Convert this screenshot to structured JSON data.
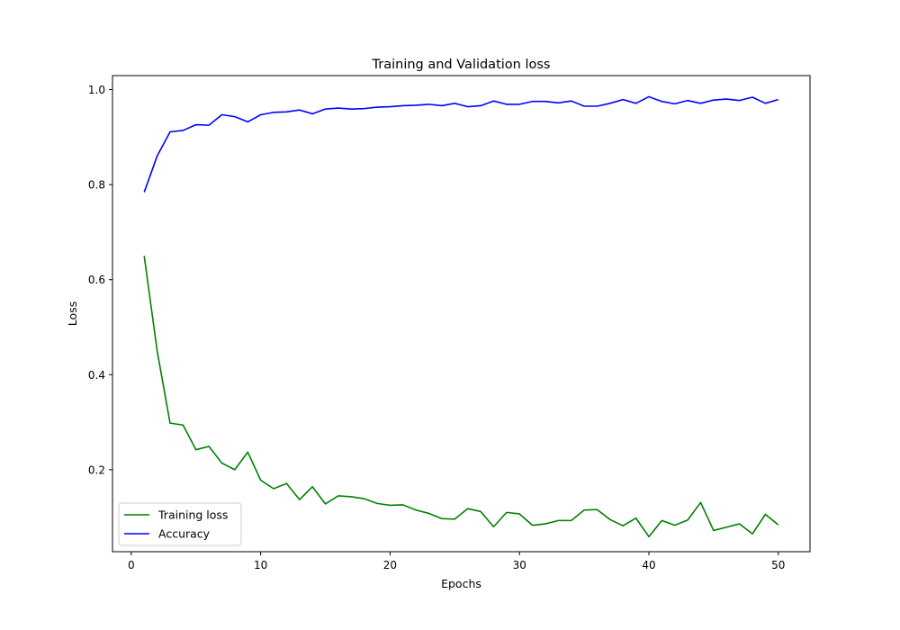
{
  "chart_data": {
    "type": "line",
    "title": "Training and Validation loss",
    "xlabel": "Epochs",
    "ylabel": "Loss",
    "xlim": [
      -1.45,
      52.45
    ],
    "ylim": [
      0.0274,
      1.0294
    ],
    "xticks": [
      0,
      10,
      20,
      30,
      40,
      50
    ],
    "xtick_labels": [
      "0",
      "10",
      "20",
      "30",
      "40",
      "50"
    ],
    "yticks": [
      0.2,
      0.4,
      0.6,
      0.8,
      1.0
    ],
    "ytick_labels": [
      "0.2",
      "0.4",
      "0.6",
      "0.8",
      "1.0"
    ],
    "grid": false,
    "legend_position": "lower-left",
    "x": [
      1,
      2,
      3,
      4,
      5,
      6,
      7,
      8,
      9,
      10,
      11,
      12,
      13,
      14,
      15,
      16,
      17,
      18,
      19,
      20,
      21,
      22,
      23,
      24,
      25,
      26,
      27,
      28,
      29,
      30,
      31,
      32,
      33,
      34,
      35,
      36,
      37,
      38,
      39,
      40,
      41,
      42,
      43,
      44,
      45,
      46,
      47,
      48,
      49,
      50
    ],
    "series": [
      {
        "name": "Training loss",
        "color": "#008000",
        "values": [
          0.65,
          0.45,
          0.298,
          0.294,
          0.242,
          0.249,
          0.214,
          0.2,
          0.237,
          0.178,
          0.16,
          0.171,
          0.137,
          0.164,
          0.128,
          0.145,
          0.143,
          0.139,
          0.129,
          0.125,
          0.126,
          0.115,
          0.108,
          0.097,
          0.096,
          0.118,
          0.112,
          0.08,
          0.11,
          0.107,
          0.083,
          0.086,
          0.093,
          0.093,
          0.115,
          0.116,
          0.095,
          0.082,
          0.098,
          0.059,
          0.093,
          0.083,
          0.094,
          0.131,
          0.072,
          0.079,
          0.086,
          0.065,
          0.106,
          0.084
        ]
      },
      {
        "name": "Accuracy",
        "color": "#0000ff",
        "values": [
          0.784,
          0.86,
          0.911,
          0.914,
          0.926,
          0.925,
          0.947,
          0.943,
          0.932,
          0.947,
          0.952,
          0.953,
          0.957,
          0.949,
          0.959,
          0.961,
          0.959,
          0.96,
          0.963,
          0.964,
          0.966,
          0.967,
          0.969,
          0.966,
          0.971,
          0.964,
          0.966,
          0.976,
          0.969,
          0.969,
          0.975,
          0.975,
          0.972,
          0.976,
          0.965,
          0.965,
          0.971,
          0.979,
          0.971,
          0.985,
          0.975,
          0.97,
          0.977,
          0.971,
          0.978,
          0.98,
          0.977,
          0.984,
          0.971,
          0.979
        ]
      }
    ]
  }
}
